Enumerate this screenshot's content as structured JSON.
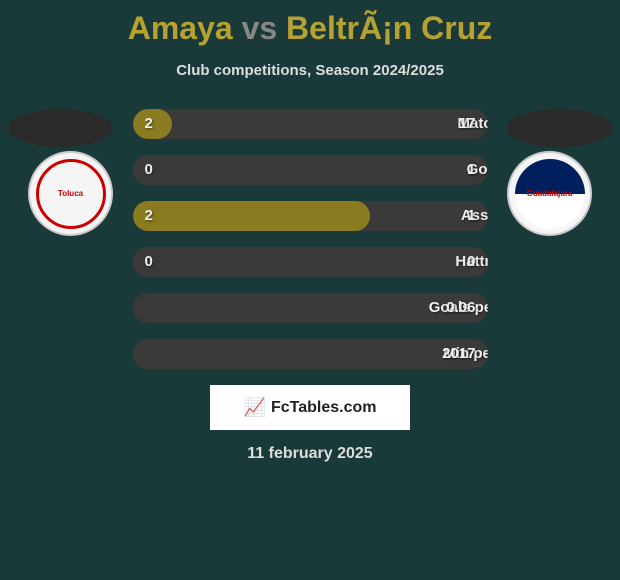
{
  "title": {
    "left_name": "Amaya",
    "vs": "vs",
    "right_name": "BeltrÃ¡n Cruz"
  },
  "subtitle": "Club competitions, Season 2024/2025",
  "left_club": "Toluca",
  "right_club": "Guadalajara",
  "colors": {
    "title_accent": "#b5a230",
    "title_vs": "#888888",
    "background": "#1a3a3a",
    "bar_fill": "#8a7a20",
    "bar_empty": "#3a3a3a",
    "text_light": "#eeeeee",
    "subtitle": "#dddddd"
  },
  "stats": [
    {
      "label": "Matches",
      "left_value": "2",
      "right_value": "17",
      "fill_percent": 11
    },
    {
      "label": "Goals",
      "left_value": "0",
      "right_value": "1",
      "fill_percent": 0
    },
    {
      "label": "Assists",
      "left_value": "2",
      "right_value": "1",
      "fill_percent": 67
    },
    {
      "label": "Hattricks",
      "left_value": "0",
      "right_value": "0",
      "fill_percent": 0
    },
    {
      "label": "Goals per match",
      "left_value": "",
      "right_value": "0.06",
      "fill_percent": 0
    },
    {
      "label": "Min per goal",
      "left_value": "",
      "right_value": "2017",
      "fill_percent": 0
    }
  ],
  "brand": {
    "icon": "📈",
    "text": "FcTables.com"
  },
  "date": "11 february 2025"
}
